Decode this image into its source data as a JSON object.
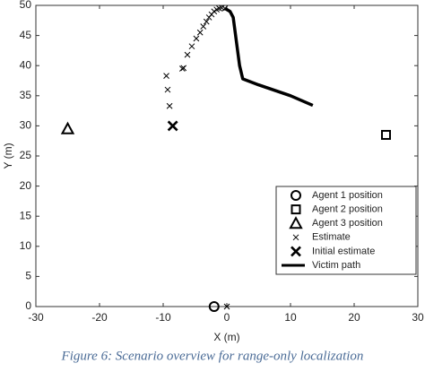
{
  "chart_data": {
    "type": "scatter",
    "xlabel": "X (m)",
    "ylabel": "Y (m)",
    "caption": "Figure 6: Scenario overview for range-only localization",
    "xlim": [
      -30,
      30
    ],
    "xticks": [
      -30,
      -20,
      -10,
      0,
      10,
      20,
      30
    ],
    "ylim": [
      0,
      50
    ],
    "yticks": [
      0,
      5,
      10,
      15,
      20,
      25,
      30,
      35,
      40,
      45,
      50
    ],
    "grid": false,
    "legend": "lower right",
    "series": [
      {
        "name": "Agent 1 position",
        "color": "#000000",
        "marker": "circle",
        "x": [
          -2
        ],
        "values": [
          0
        ]
      },
      {
        "name": "Agent 2 position",
        "color": "#000000",
        "marker": "square",
        "x": [
          25
        ],
        "values": [
          28.5
        ]
      },
      {
        "name": "Agent 3 position",
        "color": "#000000",
        "marker": "triangle",
        "x": [
          -25
        ],
        "values": [
          29.5
        ]
      },
      {
        "name": "Estimate",
        "color": "#000000",
        "marker": "x",
        "x": [
          0,
          -9,
          -9.3,
          -9.5,
          -7,
          -6.8,
          -6.2,
          -5.5,
          -4.8,
          -4.2,
          -3.7,
          -3.2,
          -2.8,
          -2.4,
          -2,
          -1.6,
          -1.2,
          -0.8,
          -0.3
        ],
        "values": [
          0,
          33.3,
          36,
          38.3,
          39.5,
          39.6,
          41.8,
          43.2,
          44.5,
          45.5,
          46.5,
          47.3,
          48,
          48.5,
          49,
          49.3,
          49.5,
          49.6,
          49.5
        ]
      },
      {
        "name": "Initial estimate",
        "color": "#000000",
        "marker": "X",
        "x": [
          -8.5
        ],
        "values": [
          30
        ]
      },
      {
        "name": "Victim path",
        "color": "#000000",
        "marker": "line",
        "x": [
          -0.3,
          0.5,
          1,
          1.5,
          2,
          2.5,
          5,
          10,
          13.5
        ],
        "values": [
          49.5,
          49,
          48,
          44,
          40,
          37.8,
          36.8,
          35,
          33.4
        ]
      }
    ]
  }
}
